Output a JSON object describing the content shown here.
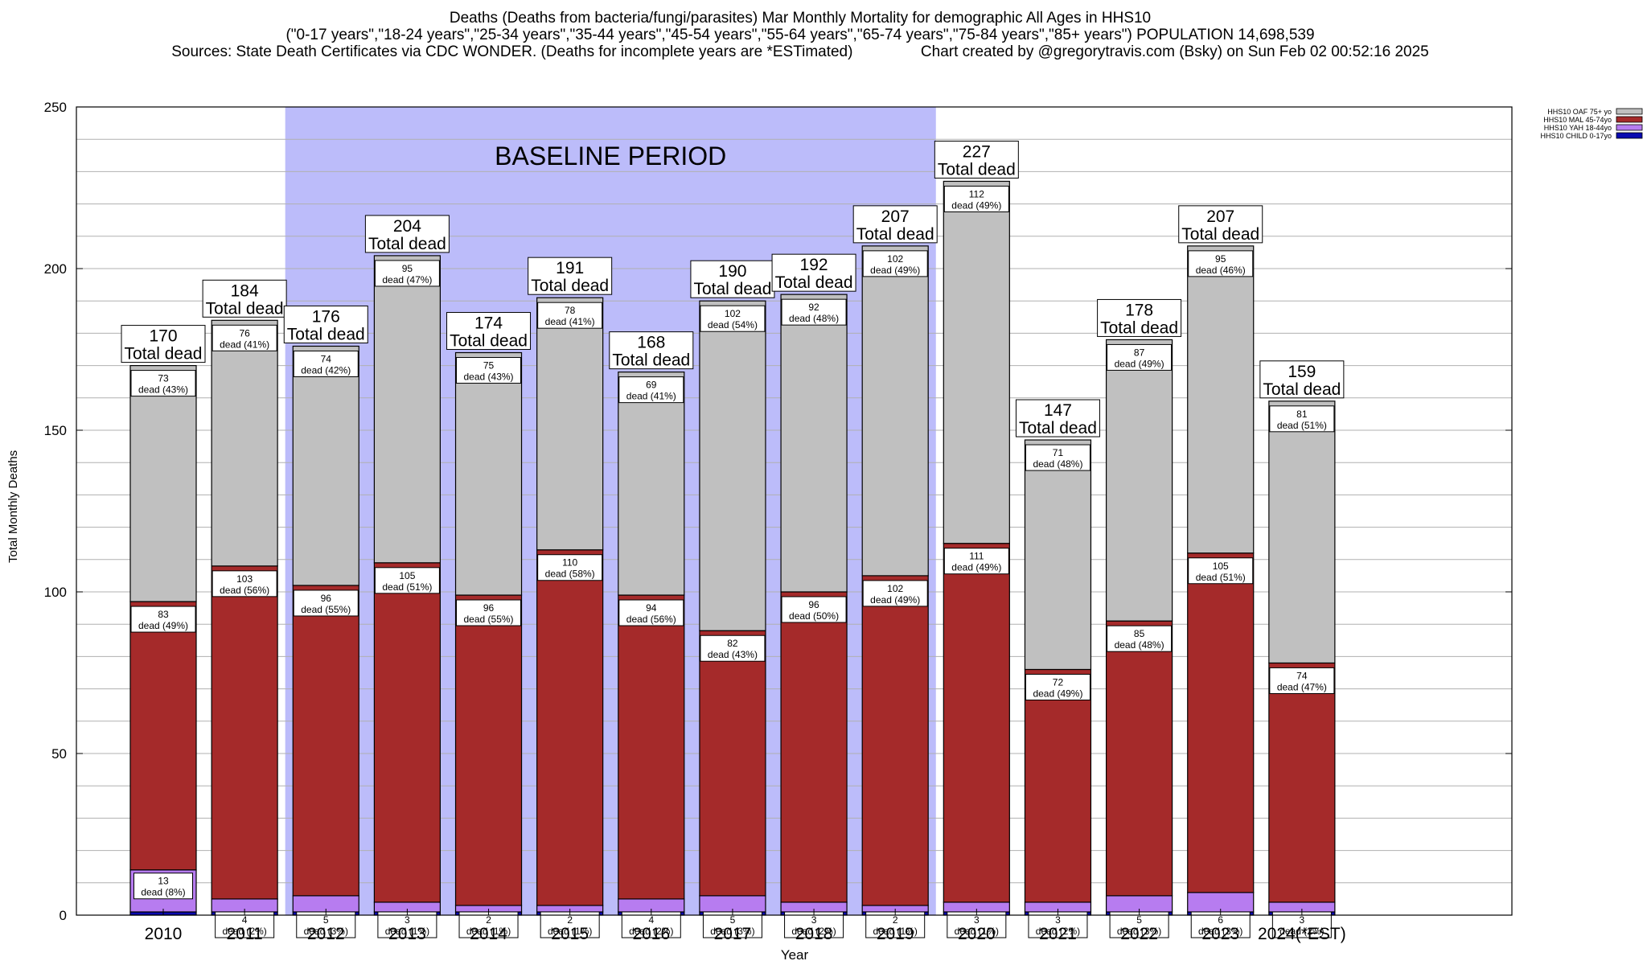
{
  "header": {
    "line1": "Deaths (Deaths from bacteria/fungi/parasites) Mar Monthly Mortality for demographic All Ages in HHS10",
    "line2": "(\"0-17 years\",\"18-24 years\",\"25-34 years\",\"35-44 years\",\"45-54 years\",\"55-64 years\",\"65-74 years\",\"75-84 years\",\"85+ years\") POPULATION 14,698,539",
    "line3": "Sources: State Death Certificates via CDC WONDER. (Deaths for incomplete years are *ESTimated)                Chart created by @gregorytravis.com (Bsky) on Sun Feb 02 00:52:16 2025"
  },
  "colors": {
    "child": "#0a0ab0",
    "yah": "#b77cf0",
    "mal": "#a52a2a",
    "oaf": "#c0c0c0",
    "baseline": "#bcbcfa"
  },
  "chart_data": {
    "type": "bar",
    "stacked": true,
    "xlabel": "Year",
    "ylabel": "Total Monthly Deaths",
    "ylim": [
      0,
      250
    ],
    "yticks": [
      0,
      50,
      100,
      150,
      200,
      250
    ],
    "grid": true,
    "legend_position": "top-right",
    "baseline_label": "BASELINE PERIOD",
    "baseline_range": [
      "2012",
      "2019"
    ],
    "total_suffix": "Total dead",
    "categories": [
      "2010",
      "2011",
      "2012",
      "2013",
      "2014",
      "2015",
      "2016",
      "2017",
      "2018",
      "2019",
      "2020",
      "2021",
      "2022",
      "2023",
      "2024(*EST)"
    ],
    "totals": [
      170,
      184,
      176,
      204,
      174,
      191,
      168,
      190,
      192,
      207,
      227,
      147,
      178,
      207,
      159
    ],
    "series": [
      {
        "name": "HHS10 CHILD 0-17yo",
        "key": "child",
        "values": [
          1,
          1,
          1,
          1,
          1,
          1,
          1,
          1,
          1,
          1,
          1,
          1,
          1,
          1,
          1
        ],
        "labels": [
          "",
          "",
          "",
          "",
          "",
          "",
          "",
          "",
          "",
          "",
          "",
          "",
          "",
          "",
          ""
        ]
      },
      {
        "name": "HHS10 YAH 18-44yo",
        "key": "yah",
        "values": [
          13,
          4,
          5,
          3,
          2,
          2,
          4,
          5,
          3,
          2,
          3,
          3,
          5,
          6,
          3
        ],
        "labels": [
          "13\ndead (8%)",
          "4\ndead (2%)",
          "5\ndead (3%)",
          "3\ndead (1%)",
          "2\ndead (1%)",
          "2\ndead (1%)",
          "4\ndead (2%)",
          "5\ndead (3%)",
          "3\ndead (2%)",
          "2\ndead (1%)",
          "3\ndead (1%)",
          "3\ndead (2%)",
          "5\ndead (3%)",
          "6\ndead (3%)",
          "3\ndead (2%)"
        ]
      },
      {
        "name": "HHS10 MAL 45-74yo",
        "key": "mal",
        "values": [
          83,
          103,
          96,
          105,
          96,
          110,
          94,
          82,
          96,
          102,
          111,
          72,
          85,
          105,
          74
        ],
        "labels": [
          "83\ndead (49%)",
          "103\ndead (56%)",
          "96\ndead (55%)",
          "105\ndead (51%)",
          "96\ndead (55%)",
          "110\ndead (58%)",
          "94\ndead (56%)",
          "82\ndead (43%)",
          "96\ndead (50%)",
          "102\ndead (49%)",
          "111\ndead (49%)",
          "72\ndead (49%)",
          "85\ndead (48%)",
          "105\ndead (51%)",
          "74\ndead (47%)"
        ]
      },
      {
        "name": "HHS10 OAF 75+ yo",
        "key": "oaf",
        "values": [
          73,
          76,
          74,
          95,
          75,
          78,
          69,
          102,
          92,
          102,
          112,
          71,
          87,
          95,
          81
        ],
        "labels": [
          "73\ndead (43%)",
          "76\ndead (41%)",
          "74\ndead (42%)",
          "95\ndead (47%)",
          "75\ndead (43%)",
          "78\ndead (41%)",
          "69\ndead (41%)",
          "102\ndead (54%)",
          "92\ndead (48%)",
          "102\ndead (49%)",
          "112\ndead (49%)",
          "71\ndead (48%)",
          "87\ndead (49%)",
          "95\ndead (46%)",
          "81\ndead (51%)"
        ]
      }
    ],
    "legend_order": [
      "oaf",
      "mal",
      "yah",
      "child"
    ]
  }
}
